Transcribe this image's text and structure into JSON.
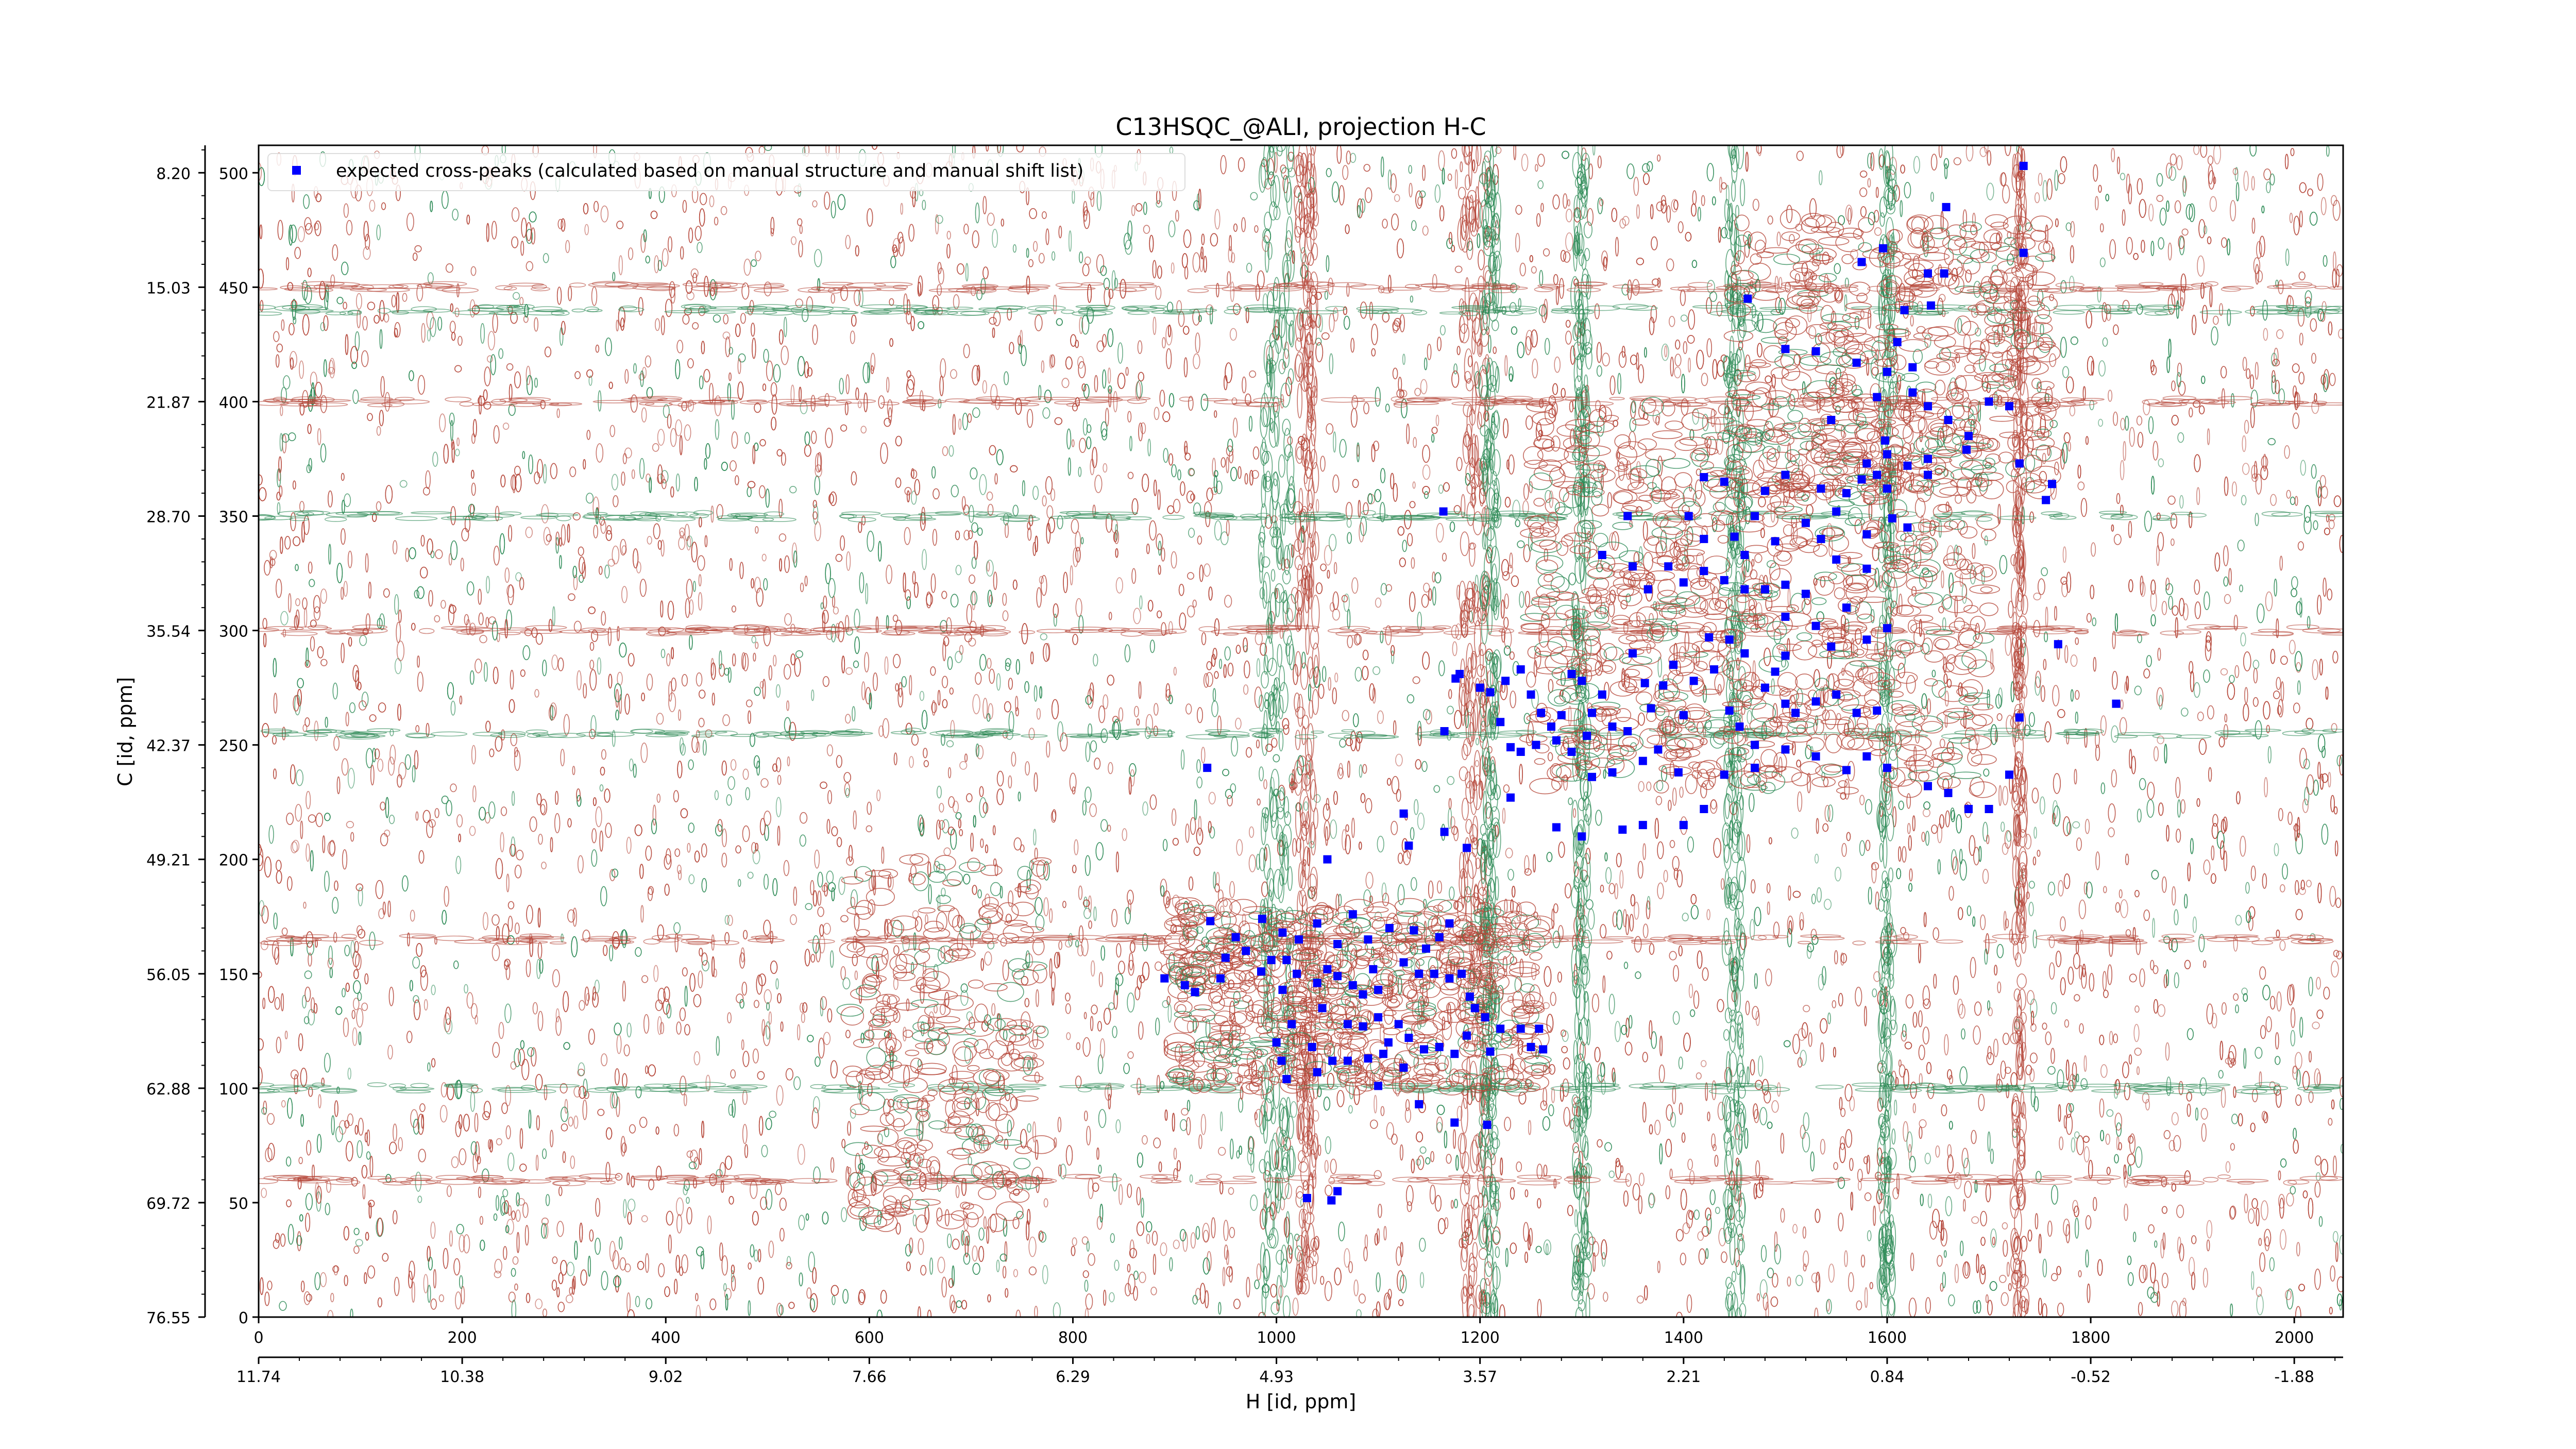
{
  "chart_data": {
    "type": "scatter",
    "title": "C13HSQC_@ALI, projection H-C",
    "xlabel": "H [id, ppm]",
    "ylabel": "C [id, ppm]",
    "xlim": [
      0,
      2048
    ],
    "ylim": [
      0,
      512
    ],
    "x_ticks": [
      0,
      200,
      400,
      600,
      800,
      1000,
      1200,
      1400,
      1600,
      1800,
      2000
    ],
    "y_ticks": [
      0,
      50,
      100,
      150,
      200,
      250,
      300,
      350,
      400,
      450,
      500
    ],
    "y_ppm_labels": [
      "76.55",
      "69.72",
      "62.88",
      "56.05",
      "49.21",
      "42.37",
      "35.54",
      "28.70",
      "21.87",
      "15.03",
      "8.20"
    ],
    "x_ppm_labels": [
      "11.74",
      "10.38",
      "9.02",
      "7.66",
      "6.29",
      "4.93",
      "3.57",
      "2.21",
      "0.84",
      "-0.52",
      "-1.88"
    ],
    "grid": false,
    "legend_position": "top-left",
    "colors": {
      "positive_contour": "#b5473a",
      "negative_contour": "#2e8b57",
      "peak_marker": "#0000ff"
    },
    "series": [
      {
        "name": "expected cross-peaks (calculated based on manual structure and manual shift list)",
        "marker": "square",
        "points": [
          [
            1734,
            503
          ],
          [
            1658,
            485
          ],
          [
            1734,
            465
          ],
          [
            1596,
            467
          ],
          [
            1575,
            461
          ],
          [
            1640,
            456
          ],
          [
            1656,
            456
          ],
          [
            1617,
            440
          ],
          [
            1643,
            442
          ],
          [
            1463,
            445
          ],
          [
            1500,
            423
          ],
          [
            1530,
            422
          ],
          [
            1570,
            417
          ],
          [
            1600,
            413
          ],
          [
            1610,
            426
          ],
          [
            1625,
            415
          ],
          [
            1590,
            402
          ],
          [
            1625,
            404
          ],
          [
            1640,
            398
          ],
          [
            1660,
            392
          ],
          [
            1680,
            385
          ],
          [
            1700,
            400
          ],
          [
            1720,
            398
          ],
          [
            1545,
            392
          ],
          [
            1598,
            383
          ],
          [
            1640,
            375
          ],
          [
            1678,
            379
          ],
          [
            1730,
            373
          ],
          [
            1762,
            364
          ],
          [
            1756,
            357
          ],
          [
            1580,
            373
          ],
          [
            1600,
            377
          ],
          [
            1620,
            372
          ],
          [
            1500,
            368
          ],
          [
            1535,
            362
          ],
          [
            1560,
            360
          ],
          [
            1575,
            366
          ],
          [
            1590,
            368
          ],
          [
            1600,
            362
          ],
          [
            1640,
            368
          ],
          [
            1420,
            367
          ],
          [
            1440,
            365
          ],
          [
            1480,
            361
          ],
          [
            1470,
            350
          ],
          [
            1450,
            341
          ],
          [
            1460,
            333
          ],
          [
            1490,
            339
          ],
          [
            1520,
            347
          ],
          [
            1535,
            340
          ],
          [
            1550,
            352
          ],
          [
            1580,
            342
          ],
          [
            1605,
            349
          ],
          [
            1620,
            345
          ],
          [
            1550,
            331
          ],
          [
            1580,
            327
          ],
          [
            1500,
            320
          ],
          [
            1520,
            316
          ],
          [
            1480,
            318
          ],
          [
            1460,
            318
          ],
          [
            1440,
            322
          ],
          [
            1420,
            326
          ],
          [
            1400,
            321
          ],
          [
            1385,
            328
          ],
          [
            1365,
            318
          ],
          [
            1350,
            328
          ],
          [
            1320,
            333
          ],
          [
            1345,
            350
          ],
          [
            1405,
            350
          ],
          [
            1420,
            340
          ],
          [
            1500,
            306
          ],
          [
            1530,
            302
          ],
          [
            1560,
            310
          ],
          [
            1580,
            296
          ],
          [
            1600,
            301
          ],
          [
            1425,
            297
          ],
          [
            1445,
            296
          ],
          [
            1460,
            290
          ],
          [
            1500,
            289
          ],
          [
            1545,
            293
          ],
          [
            1480,
            275
          ],
          [
            1490,
            282
          ],
          [
            1500,
            268
          ],
          [
            1510,
            264
          ],
          [
            1530,
            269
          ],
          [
            1550,
            272
          ],
          [
            1570,
            264
          ],
          [
            1590,
            265
          ],
          [
            1430,
            283
          ],
          [
            1445,
            265
          ],
          [
            1455,
            258
          ],
          [
            1470,
            250
          ],
          [
            1380,
            276
          ],
          [
            1390,
            285
          ],
          [
            1400,
            263
          ],
          [
            1410,
            278
          ],
          [
            1350,
            290
          ],
          [
            1362,
            277
          ],
          [
            1368,
            266
          ],
          [
            1345,
            256
          ],
          [
            1330,
            258
          ],
          [
            1320,
            272
          ],
          [
            1310,
            264
          ],
          [
            1300,
            278
          ],
          [
            1290,
            281
          ],
          [
            1280,
            263
          ],
          [
            1275,
            252
          ],
          [
            1260,
            264
          ],
          [
            1250,
            272
          ],
          [
            1240,
            283
          ],
          [
            1225,
            278
          ],
          [
            1210,
            273
          ],
          [
            1200,
            275
          ],
          [
            1180,
            281
          ],
          [
            1176,
            279
          ],
          [
            1240,
            247
          ],
          [
            1255,
            250
          ],
          [
            1270,
            258
          ],
          [
            1290,
            247
          ],
          [
            1305,
            254
          ],
          [
            1310,
            236
          ],
          [
            1330,
            238
          ],
          [
            1360,
            243
          ],
          [
            1375,
            248
          ],
          [
            1440,
            237
          ],
          [
            1470,
            240
          ],
          [
            1500,
            248
          ],
          [
            1530,
            245
          ],
          [
            1560,
            239
          ],
          [
            1580,
            245
          ],
          [
            1600,
            240
          ],
          [
            1640,
            232
          ],
          [
            1660,
            229
          ],
          [
            1680,
            222
          ],
          [
            1700,
            222
          ],
          [
            1720,
            237
          ],
          [
            1768,
            294
          ],
          [
            1825,
            268
          ],
          [
            1730,
            262
          ],
          [
            1395,
            238
          ],
          [
            1420,
            222
          ],
          [
            1400,
            215
          ],
          [
            1360,
            215
          ],
          [
            1340,
            213
          ],
          [
            1300,
            210
          ],
          [
            1275,
            214
          ],
          [
            1230,
            227
          ],
          [
            1187,
            205
          ],
          [
            1165,
            212
          ],
          [
            1130,
            206
          ],
          [
            1125,
            220
          ],
          [
            1165,
            256
          ],
          [
            1220,
            260
          ],
          [
            1230,
            249
          ],
          [
            1164,
            352
          ],
          [
            1050,
            200
          ],
          [
            932,
            240
          ],
          [
            935,
            173
          ],
          [
            960,
            166
          ],
          [
            986,
            174
          ],
          [
            1006,
            168
          ],
          [
            1022,
            165
          ],
          [
            1040,
            172
          ],
          [
            1060,
            163
          ],
          [
            1075,
            176
          ],
          [
            1090,
            165
          ],
          [
            1111,
            170
          ],
          [
            1135,
            169
          ],
          [
            1147,
            161
          ],
          [
            1160,
            166
          ],
          [
            1170,
            172
          ],
          [
            1095,
            152
          ],
          [
            1100,
            143
          ],
          [
            1125,
            155
          ],
          [
            1140,
            150
          ],
          [
            1155,
            150
          ],
          [
            1170,
            148
          ],
          [
            1182,
            150
          ],
          [
            1190,
            140
          ],
          [
            1010,
            156
          ],
          [
            1020,
            150
          ],
          [
            1040,
            146
          ],
          [
            1050,
            152
          ],
          [
            1060,
            149
          ],
          [
            1075,
            145
          ],
          [
            1085,
            141
          ],
          [
            995,
            156
          ],
          [
            985,
            151
          ],
          [
            970,
            160
          ],
          [
            950,
            157
          ],
          [
            945,
            148
          ],
          [
            910,
            145
          ],
          [
            890,
            148
          ],
          [
            920,
            142
          ],
          [
            1006,
            143
          ],
          [
            1045,
            135
          ],
          [
            1070,
            128
          ],
          [
            1085,
            127
          ],
          [
            1100,
            131
          ],
          [
            1120,
            128
          ],
          [
            1130,
            122
          ],
          [
            1145,
            117
          ],
          [
            1160,
            118
          ],
          [
            1175,
            115
          ],
          [
            1195,
            135
          ],
          [
            1205,
            131
          ],
          [
            1220,
            126
          ],
          [
            1240,
            126
          ],
          [
            1250,
            118
          ],
          [
            1258,
            126
          ],
          [
            1262,
            117
          ],
          [
            1110,
            120
          ],
          [
            1105,
            115
          ],
          [
            1090,
            113
          ],
          [
            1070,
            112
          ],
          [
            1055,
            112
          ],
          [
            1040,
            107
          ],
          [
            1035,
            118
          ],
          [
            1015,
            128
          ],
          [
            1005,
            112
          ],
          [
            1010,
            104
          ],
          [
            1000,
            120
          ],
          [
            1100,
            101
          ],
          [
            1125,
            109
          ],
          [
            1140,
            93
          ],
          [
            1175,
            85
          ],
          [
            1207,
            84
          ],
          [
            1060,
            55
          ],
          [
            1054,
            51
          ],
          [
            1030,
            52
          ],
          [
            1187,
            123
          ],
          [
            1210,
            116
          ]
        ]
      }
    ]
  }
}
